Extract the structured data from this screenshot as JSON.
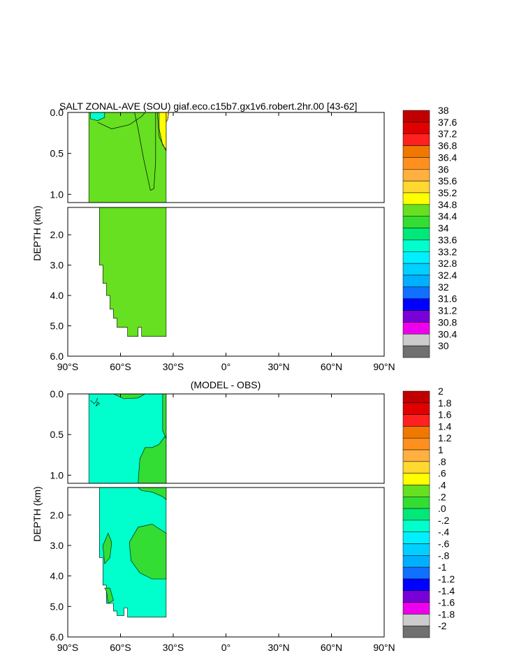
{
  "chart_data": [
    {
      "type": "heatmap",
      "title": "SALT ZONAL-AVE (SOU) giaf.eco.c15b7.gx1v6.robert.2hr.00 [43-62]",
      "ylabel": "DEPTH (km)",
      "xlabel": "",
      "x_ticks": [
        "90°S",
        "60°S",
        "30°S",
        "0°",
        "30°N",
        "60°N",
        "90°N"
      ],
      "x_values": [
        -90,
        -60,
        -30,
        0,
        30,
        60,
        90
      ],
      "y_ticks_upper": [
        "0.0",
        "0.5",
        "1.0"
      ],
      "y_ticks_upper_values": [
        0,
        0.5,
        1.0
      ],
      "y_ticks_lower": [
        "2.0",
        "3.0",
        "4.0",
        "5.0",
        "6.0"
      ],
      "y_ticks_lower_values": [
        2,
        3,
        4,
        5,
        6
      ],
      "upper_depth_range_km": [
        0,
        1.1
      ],
      "lower_depth_range_km": [
        1.1,
        6.0
      ],
      "xlim": [
        -90,
        90
      ],
      "colorbar": {
        "labels": [
          "38",
          "37.6",
          "37.2",
          "36.8",
          "36.4",
          "36",
          "35.6",
          "35.2",
          "34.8",
          "34.4",
          "34",
          "33.6",
          "33.2",
          "32.8",
          "32.4",
          "32",
          "31.6",
          "31.2",
          "30.8",
          "30.4",
          "30"
        ],
        "colors": [
          "#c00000",
          "#e00000",
          "#ff2020",
          "#f07800",
          "#ff9020",
          "#ffb040",
          "#ffd830",
          "#ffff00",
          "#66e020",
          "#33dd33",
          "#00e87a",
          "#00ffcc",
          "#00f0ff",
          "#00d0ff",
          "#00b0ff",
          "#1070ff",
          "#0000ff",
          "#7a00d8",
          "#ee00ee",
          "#cccccc",
          "#707070"
        ]
      },
      "regions": [
        {
          "name": "34.4-34.8",
          "color": "#66e020",
          "lat": [
            -78,
            -34
          ],
          "depth": [
            0,
            5.35
          ]
        },
        {
          "name": "33.6-34.0",
          "color": "#00ffcc",
          "lat": [
            -76,
            -70
          ],
          "depth": [
            0,
            0.1
          ]
        },
        {
          "name": "35.2-35.6",
          "color": "#ffff00",
          "lat": [
            -37,
            -34
          ],
          "depth": [
            0,
            0.45
          ]
        }
      ]
    },
    {
      "type": "heatmap",
      "title": "(MODEL - OBS)",
      "ylabel": "DEPTH (km)",
      "xlabel": "",
      "x_ticks": [
        "90°S",
        "60°S",
        "30°S",
        "0°",
        "30°N",
        "60°N",
        "90°N"
      ],
      "x_values": [
        -90,
        -60,
        -30,
        0,
        30,
        60,
        90
      ],
      "y_ticks_upper": [
        "0.0",
        "0.5",
        "1.0"
      ],
      "y_ticks_upper_values": [
        0,
        0.5,
        1.0
      ],
      "y_ticks_lower": [
        "2.0",
        "3.0",
        "4.0",
        "5.0",
        "6.0"
      ],
      "y_ticks_lower_values": [
        2,
        3,
        4,
        5,
        6
      ],
      "upper_depth_range_km": [
        0,
        1.1
      ],
      "lower_depth_range_km": [
        1.1,
        6.0
      ],
      "xlim": [
        -90,
        90
      ],
      "colorbar": {
        "labels": [
          "2",
          "1.8",
          "1.6",
          "1.4",
          "1.2",
          "1",
          ".8",
          ".6",
          ".4",
          ".2",
          ".0",
          "-.2",
          "-.4",
          "-.6",
          "-.8",
          "-1",
          "-1.2",
          "-1.4",
          "-1.6",
          "-1.8",
          "-2"
        ],
        "colors": [
          "#c00000",
          "#e00000",
          "#ff2020",
          "#f07800",
          "#ff9020",
          "#ffb040",
          "#ffd830",
          "#ffff00",
          "#66e020",
          "#33dd33",
          "#00e87a",
          "#00ffcc",
          "#00f0ff",
          "#00d0ff",
          "#00b0ff",
          "#1070ff",
          "#0000ff",
          "#7a00d8",
          "#ee00ee",
          "#cccccc",
          "#707070"
        ]
      },
      "regions": [
        {
          "name": "-0.2-0.0",
          "color": "#00ffcc",
          "lat": [
            -78,
            -34
          ],
          "depth": [
            0,
            5.35
          ]
        },
        {
          "name": "0.0-0.2",
          "color": "#33dd33",
          "lat": [
            -50,
            -34
          ],
          "depth": [
            0.6,
            1.1
          ]
        },
        {
          "name": "0.0-0.2",
          "color": "#33dd33",
          "lat": [
            -56,
            -34
          ],
          "depth": [
            2.4,
            4.1
          ]
        }
      ]
    }
  ]
}
